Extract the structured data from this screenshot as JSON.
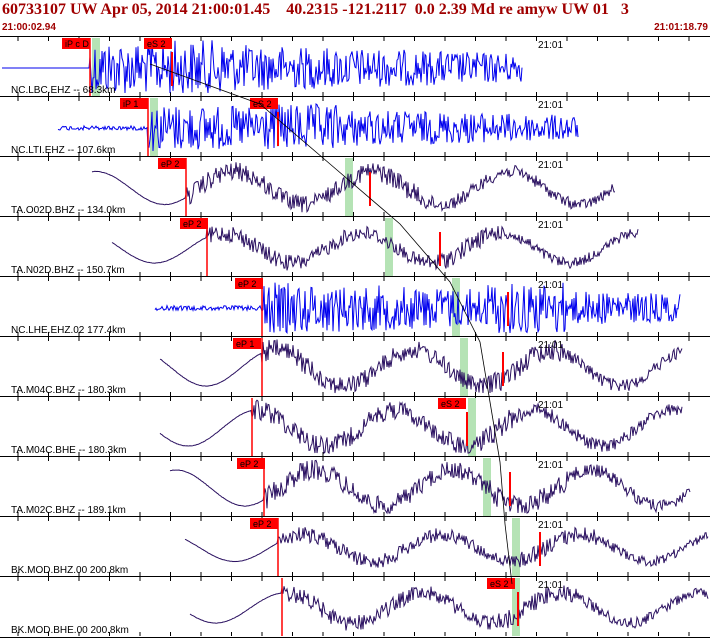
{
  "header": {
    "title": "60733107 UW Apr 05, 2014 21:00:01.45    40.2315 -121.2117  0.0 2.39 Md re amyw UW 01   3",
    "start_time": "21:00:02.94",
    "end_time": "21:01:18.79"
  },
  "colors": {
    "header_text": "#a00000",
    "trace_blue": "#0000ee",
    "trace_navy": "#2a1060",
    "pick_flag": "#ff0000",
    "pick_window": "#b5e3b5",
    "travel_time_curve": "#000000"
  },
  "channels": [
    {
      "label": "NC.LBC.EHZ -- 68.3km",
      "color": "blue",
      "time_label": "21:01",
      "picks": [
        {
          "text": "iP c D",
          "kind": "P"
        },
        {
          "text": "eS 2",
          "kind": "S"
        }
      ]
    },
    {
      "label": "NC.LTI.EHZ -- 107.6km",
      "color": "blue",
      "time_label": "21:01",
      "picks": [
        {
          "text": "iP 1",
          "kind": "P"
        },
        {
          "text": "eS 2",
          "kind": "S"
        }
      ]
    },
    {
      "label": "TA.O02D.BHZ -- 134.0km",
      "color": "navy",
      "time_label": "21:01",
      "picks": [
        {
          "text": "eP 2",
          "kind": "P"
        }
      ]
    },
    {
      "label": "TA.N02D.BHZ -- 150.7km",
      "color": "navy",
      "time_label": "21:01",
      "picks": [
        {
          "text": "eP 2",
          "kind": "P"
        }
      ]
    },
    {
      "label": "NC.LHE.EHZ.02 177.4km",
      "color": "blue",
      "time_label": "21:01",
      "picks": [
        {
          "text": "eP 2",
          "kind": "P"
        }
      ]
    },
    {
      "label": "TA.M04C.BHZ -- 180.3km",
      "color": "navy",
      "time_label": "21:01",
      "picks": [
        {
          "text": "eP 1",
          "kind": "P"
        }
      ]
    },
    {
      "label": "TA.M04C.BHE -- 180.3km",
      "color": "navy",
      "time_label": "21:01",
      "picks": [
        {
          "text": "eS 2",
          "kind": "S"
        }
      ]
    },
    {
      "label": "TA.M02C.BHZ -- 189.1km",
      "color": "navy",
      "time_label": "21:01",
      "picks": [
        {
          "text": "eP 2",
          "kind": "P"
        }
      ]
    },
    {
      "label": "BK.MOD.BHZ.00 200.8km",
      "color": "navy",
      "time_label": "21:01",
      "picks": [
        {
          "text": "eP 2",
          "kind": "P"
        }
      ]
    },
    {
      "label": "BK.MOD.BHE.00 200.8km",
      "color": "navy",
      "time_label": "21:01",
      "picks": [
        {
          "text": "eS 2",
          "kind": "S"
        }
      ]
    }
  ]
}
